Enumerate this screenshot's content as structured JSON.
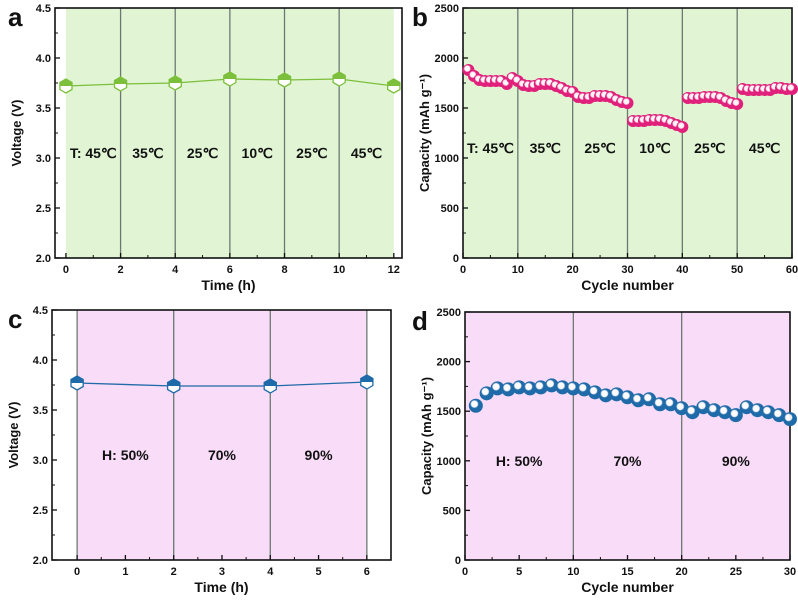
{
  "chart_data": [
    {
      "panel": "a",
      "type": "line",
      "xlabel": "Time (h)",
      "ylabel": "Voltage (V)",
      "xlim": [
        -0.4,
        12.3
      ],
      "ylim": [
        2.0,
        4.5
      ],
      "xticks": [
        0,
        2,
        4,
        6,
        8,
        10,
        12
      ],
      "yticks": [
        2.0,
        2.5,
        3.0,
        3.5,
        4.0,
        4.5
      ],
      "ytick_labels": [
        "2.0",
        "2.5",
        "3.0",
        "3.5",
        "4.0",
        "4.5"
      ],
      "x": [
        0,
        2,
        4,
        6,
        8,
        10,
        12
      ],
      "y": [
        3.72,
        3.74,
        3.75,
        3.79,
        3.78,
        3.79,
        3.72
      ],
      "dividers": [
        2,
        4,
        6,
        8,
        10
      ],
      "shaded_range": [
        0,
        12
      ],
      "regions": [
        {
          "label": "T: 45℃",
          "x": 1
        },
        {
          "label": "35℃",
          "x": 3
        },
        {
          "label": "25℃",
          "x": 5
        },
        {
          "label": "10℃",
          "x": 7
        },
        {
          "label": "25℃",
          "x": 9
        },
        {
          "label": "45℃",
          "x": 11
        }
      ],
      "region_label_y": 3.05,
      "marker": "hexagon",
      "color": "#7cbf3a",
      "fill": "#e1f5d5"
    },
    {
      "panel": "b",
      "type": "scatter",
      "xlabel": "Cycle number",
      "ylabel": "Capacity (mAh g⁻¹)",
      "xlim": [
        0,
        60
      ],
      "ylim": [
        0,
        2500
      ],
      "xticks": [
        0,
        10,
        20,
        30,
        40,
        50,
        60
      ],
      "yticks": [
        0,
        500,
        1000,
        1500,
        2000,
        2500
      ],
      "ytick_labels": [
        "0",
        "500",
        "1000",
        "1500",
        "2000",
        "2500"
      ],
      "x": [
        1,
        2,
        3,
        4,
        5,
        6,
        7,
        8,
        9,
        10,
        11,
        12,
        13,
        14,
        15,
        16,
        17,
        18,
        19,
        20,
        21,
        22,
        23,
        24,
        25,
        26,
        27,
        28,
        29,
        30,
        31,
        32,
        33,
        34,
        35,
        36,
        37,
        38,
        39,
        40,
        41,
        42,
        43,
        44,
        45,
        46,
        47,
        48,
        49,
        50,
        51,
        52,
        53,
        54,
        55,
        56,
        57,
        58,
        59,
        60
      ],
      "y": [
        1880,
        1820,
        1780,
        1770,
        1770,
        1770,
        1770,
        1740,
        1800,
        1770,
        1730,
        1720,
        1720,
        1740,
        1740,
        1740,
        1720,
        1700,
        1670,
        1660,
        1610,
        1600,
        1600,
        1620,
        1620,
        1620,
        1610,
        1580,
        1560,
        1550,
        1370,
        1370,
        1370,
        1380,
        1380,
        1380,
        1370,
        1350,
        1330,
        1310,
        1600,
        1600,
        1600,
        1610,
        1610,
        1610,
        1600,
        1570,
        1550,
        1540,
        1690,
        1680,
        1680,
        1680,
        1680,
        1680,
        1700,
        1700,
        1690,
        1690
      ],
      "dividers": [
        10,
        20,
        30,
        40,
        50
      ],
      "shaded_range": [
        0,
        60
      ],
      "regions": [
        {
          "label": "T: 45℃",
          "x": 5
        },
        {
          "label": "35℃",
          "x": 15
        },
        {
          "label": "25℃",
          "x": 25
        },
        {
          "label": "10℃",
          "x": 35
        },
        {
          "label": "25℃",
          "x": 45
        },
        {
          "label": "45℃",
          "x": 55
        }
      ],
      "region_label_y": 1100,
      "marker": "sphere",
      "color": "#e0207a",
      "fill": "#e1f5d5"
    },
    {
      "panel": "c",
      "type": "line",
      "xlabel": "Time (h)",
      "ylabel": "Voltage (V)",
      "xlim": [
        -0.52,
        6.5
      ],
      "ylim": [
        2.0,
        4.5
      ],
      "xticks": [
        0,
        1,
        2,
        3,
        4,
        5,
        6
      ],
      "yticks": [
        2.0,
        2.5,
        3.0,
        3.5,
        4.0,
        4.5
      ],
      "ytick_labels": [
        "2.0",
        "2.5",
        "3.0",
        "3.5",
        "4.0",
        "4.5"
      ],
      "x": [
        0,
        2,
        4,
        6
      ],
      "y": [
        3.77,
        3.74,
        3.74,
        3.78
      ],
      "dividers": [
        0,
        2,
        4,
        6
      ],
      "shaded_range": [
        0,
        6
      ],
      "regions": [
        {
          "label": "H: 50%",
          "x": 1
        },
        {
          "label": "70%",
          "x": 3
        },
        {
          "label": "90%",
          "x": 5
        }
      ],
      "region_label_y": 3.05,
      "marker": "hexagon",
      "color": "#1f6aa8",
      "fill": "#f8dcf8"
    },
    {
      "panel": "d",
      "type": "scatter",
      "xlabel": "Cycle number",
      "ylabel": "Capacity (mAh g⁻¹)",
      "xlim": [
        0,
        30
      ],
      "ylim": [
        0,
        2500
      ],
      "xticks": [
        0,
        5,
        10,
        15,
        20,
        25,
        30
      ],
      "yticks": [
        0,
        500,
        1000,
        1500,
        2000,
        2500
      ],
      "ytick_labels": [
        "0",
        "500",
        "1000",
        "1500",
        "2000",
        "2500"
      ],
      "x": [
        1,
        2,
        3,
        4,
        5,
        6,
        7,
        8,
        9,
        10,
        11,
        12,
        13,
        14,
        15,
        16,
        17,
        18,
        19,
        20,
        21,
        22,
        23,
        24,
        25,
        26,
        27,
        28,
        29,
        30
      ],
      "y": [
        1555,
        1680,
        1730,
        1720,
        1740,
        1730,
        1740,
        1760,
        1740,
        1730,
        1720,
        1690,
        1660,
        1670,
        1640,
        1610,
        1620,
        1570,
        1570,
        1530,
        1490,
        1540,
        1510,
        1490,
        1460,
        1540,
        1510,
        1490,
        1460,
        1420
      ],
      "dividers": [
        10,
        20
      ],
      "shaded_range": [
        0,
        30
      ],
      "regions": [
        {
          "label": "H: 50%",
          "x": 5
        },
        {
          "label": "70%",
          "x": 15
        },
        {
          "label": "90%",
          "x": 25
        }
      ],
      "region_label_y": 1000,
      "marker": "sphere",
      "color": "#1f6aa8",
      "fill": "#f8dcf8"
    }
  ]
}
